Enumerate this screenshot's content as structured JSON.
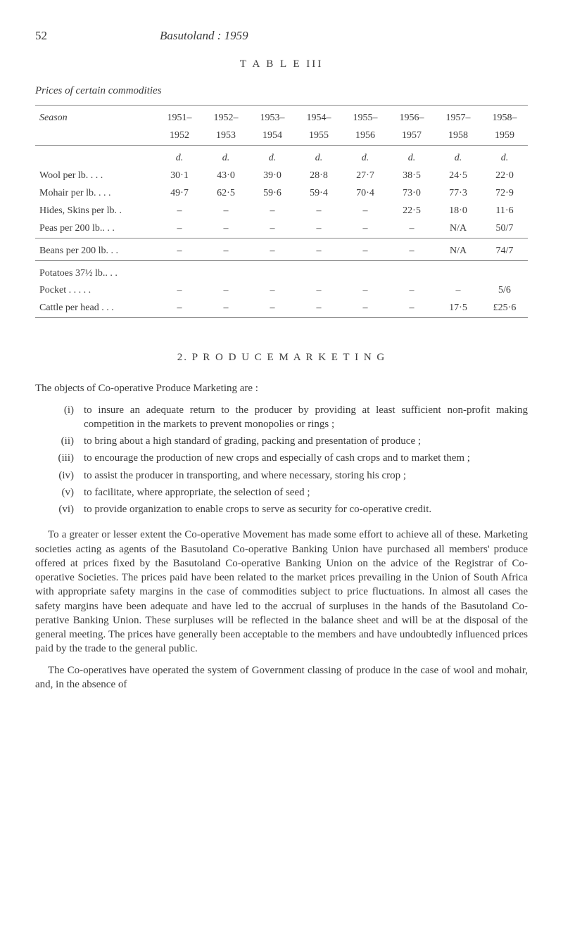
{
  "page_number": "52",
  "running_title": "Basutoland : 1959",
  "table_label": "T A B L E  III",
  "table_caption": "Prices of certain commodities",
  "table": {
    "season_label": "Season",
    "year_top": [
      "1951–",
      "1952–",
      "1953–",
      "1954–",
      "1955–",
      "1956–",
      "1957–",
      "1958–"
    ],
    "year_bot": [
      "1952",
      "1953",
      "1954",
      "1955",
      "1956",
      "1957",
      "1958",
      "1959"
    ],
    "d_row": [
      "d.",
      "d.",
      "d.",
      "d.",
      "d.",
      "d.",
      "d.",
      "d."
    ],
    "rows_block1": [
      {
        "label": "Wool per lb.   .   .   .",
        "cells": [
          "30·1",
          "43·0",
          "39·0",
          "28·8",
          "27·7",
          "38·5",
          "24·5",
          "22·0"
        ]
      },
      {
        "label": "Mohair per lb. .   .   .",
        "cells": [
          "49·7",
          "62·5",
          "59·6",
          "59·4",
          "70·4",
          "73·0",
          "77·3",
          "72·9"
        ]
      },
      {
        "label": "Hides, Skins per lb.   .",
        "cells": [
          "–",
          "–",
          "–",
          "–",
          "–",
          "22·5",
          "18·0",
          "11·6"
        ]
      },
      {
        "label": "Peas per 200 lb..   .   .",
        "cells": [
          "–",
          "–",
          "–",
          "–",
          "–",
          "–",
          "N/A",
          "50/7"
        ]
      }
    ],
    "rows_block2": [
      {
        "label": "Beans per 200 lb.  .   .",
        "cells": [
          "–",
          "–",
          "–",
          "–",
          "–",
          "–",
          "N/A",
          "74/7"
        ]
      }
    ],
    "rows_block3": [
      {
        "label": "Potatoes 37½ lb..  .   .",
        "cells": [
          "",
          "",
          "",
          "",
          "",
          "",
          "",
          ""
        ]
      },
      {
        "label": "Pocket   .   .   .   .   .",
        "cells": [
          "–",
          "–",
          "–",
          "–",
          "–",
          "–",
          "–",
          "5/6"
        ]
      },
      {
        "label": "Cattle per head .   .   .",
        "cells": [
          "–",
          "–",
          "–",
          "–",
          "–",
          "–",
          "17·5",
          "£25·6"
        ]
      }
    ]
  },
  "section_heading": "2.   P R O D U C E   M A R K E T I N G",
  "intro_line": "The objects of Co-operative Produce Marketing are :",
  "list": [
    {
      "marker": "(i)",
      "text": "to insure an adequate return to the producer by providing at least sufficient non-profit making competition in the markets to prevent monopolies or rings ;"
    },
    {
      "marker": "(ii)",
      "text": "to bring about a high standard of grading, packing and pre­sentation of produce ;"
    },
    {
      "marker": "(iii)",
      "text": "to encourage the production of new crops and especially of cash crops and to market them ;"
    },
    {
      "marker": "(iv)",
      "text": "to assist the producer in transporting, and where necessary, storing his crop ;"
    },
    {
      "marker": "(v)",
      "text": "to facilitate, where appropriate, the selection of seed ;"
    },
    {
      "marker": "(vi)",
      "text": "to provide organization to enable crops to serve as security for co-operative credit."
    }
  ],
  "para1": "To a greater or lesser extent the Co-operative Movement has made some effort to achieve all of these. Marketing societies acting as agents of the Basutoland Co-operative Banking Union have purchased all members' produce offered at prices fixed by the Basutoland Co-operative Banking Union on the advice of the Registrar of Co-operative Socie­ties. The prices paid have been related to the market prices prevailing in the Union of South Africa with appropriate safety margins in the case of commodities subject to price fluctuations. In almost all cases the safety margins have been adequate and have led to the accrual of surpluses in the hands of the Basutoland Co-perative Banking Union. These surpluses will be reflected in the balance sheet and will be at the disposal of the general meeting. The prices have generally been acceptable to the members and have undoubtedly influenced prices paid by the trade to the general public.",
  "para2": "The Co-operatives have operated the system of Government classing of produce in the case of wool and mohair, and, in the absence of"
}
